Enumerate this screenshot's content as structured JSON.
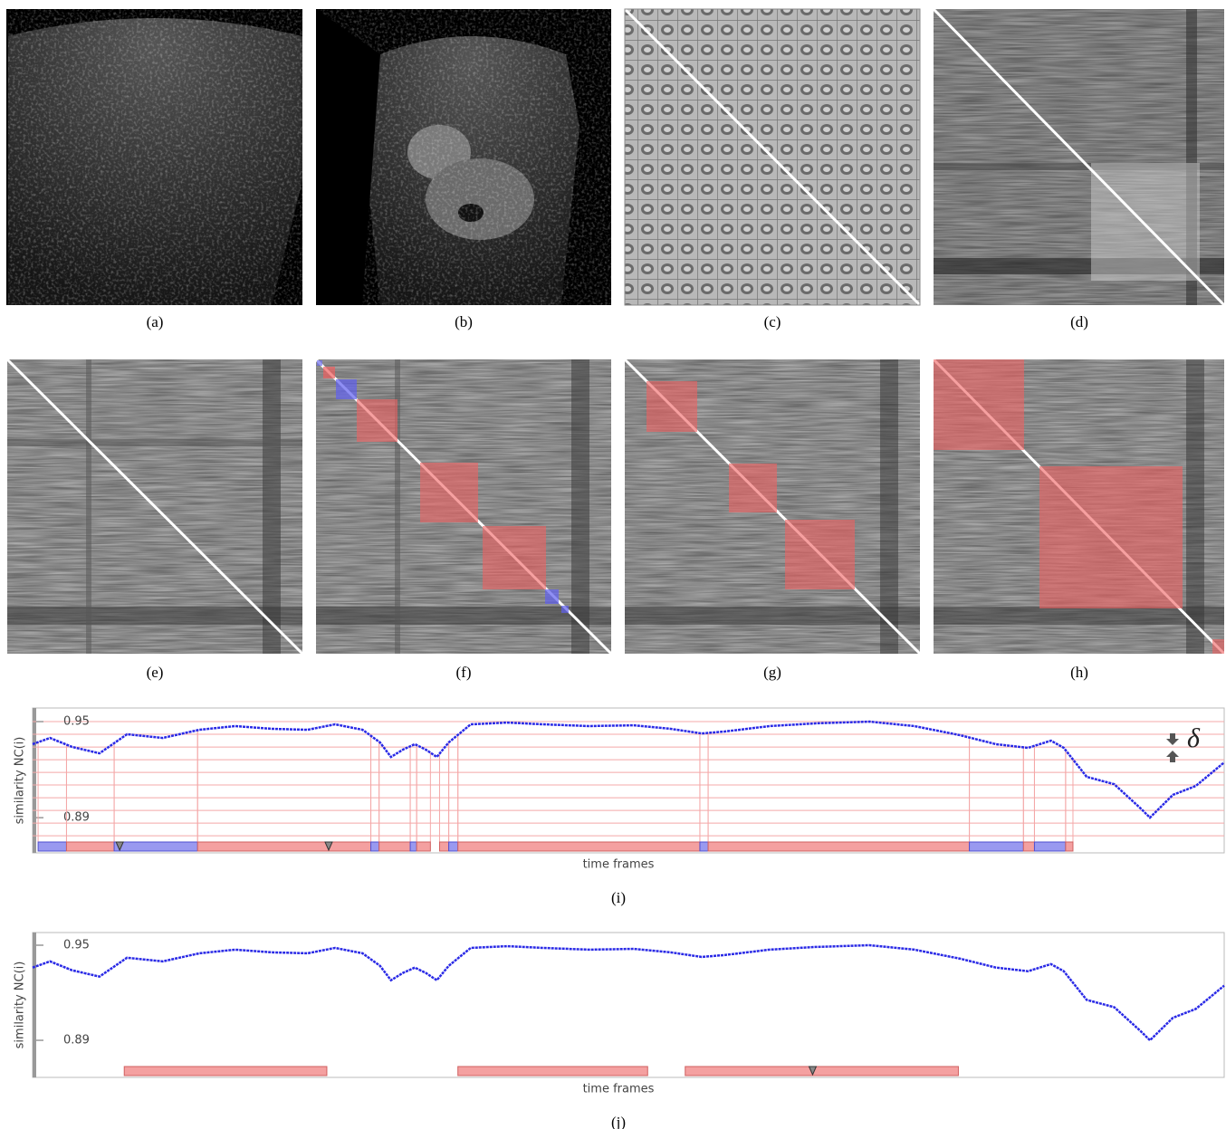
{
  "panels": [
    {
      "caption": "(a)"
    },
    {
      "caption": "(b)"
    },
    {
      "caption": "(c)"
    },
    {
      "caption": "(d)"
    },
    {
      "caption": "(e)"
    },
    {
      "caption": "(f)"
    },
    {
      "caption": "(g)"
    },
    {
      "caption": "(h)"
    }
  ],
  "chart_data": [
    {
      "type": "line",
      "caption": "(i)",
      "ylabel": "similarity NC(i)",
      "xlabel": "time frames",
      "annotation": "δ",
      "color": "#2a2ae6",
      "xlim": [
        0,
        130
      ],
      "ylim": [
        0.868,
        0.9585
      ],
      "yticks": [
        0.95,
        0.89
      ],
      "x": [
        0,
        1.9,
        4.3,
        7.3,
        10.3,
        14.2,
        18.2,
        22.1,
        26.1,
        30.0,
        33.0,
        36.0,
        37.9,
        39.1,
        40.4,
        41.7,
        42.9,
        44.1,
        45.4,
        47.8,
        51.8,
        55.7,
        60.7,
        65.6,
        69.6,
        73.0,
        75.5,
        80.4,
        85.4,
        91.3,
        96.2,
        101.2,
        105.1,
        108.6,
        111.1,
        112.5,
        115.0,
        118.0,
        120.9,
        121.9,
        124.4,
        126.9,
        130
      ],
      "values": [
        0.9359,
        0.9398,
        0.9342,
        0.9302,
        0.9421,
        0.9398,
        0.9449,
        0.9472,
        0.9455,
        0.9449,
        0.9483,
        0.9449,
        0.937,
        0.9279,
        0.9325,
        0.9359,
        0.9325,
        0.9279,
        0.937,
        0.9483,
        0.9494,
        0.9483,
        0.9472,
        0.9477,
        0.9455,
        0.9426,
        0.9438,
        0.9472,
        0.9489,
        0.95,
        0.9472,
        0.9415,
        0.9359,
        0.9336,
        0.9381,
        0.9336,
        0.9155,
        0.9109,
        0.8957,
        0.89,
        0.9042,
        0.9098,
        0.9245
      ],
      "thresholds": [
        0.95,
        0.9421,
        0.9341,
        0.9262,
        0.9183,
        0.9104,
        0.9024,
        0.8945,
        0.8866,
        0.8787
      ],
      "threshold_color": "#f4a8a8",
      "segments": [
        {
          "start": 0.6,
          "end": 3.7,
          "color": "#9999f0"
        },
        {
          "start": 3.7,
          "end": 8.9,
          "color": "#f4a0a0"
        },
        {
          "start": 8.9,
          "end": 18.0,
          "color": "#9999f0"
        },
        {
          "start": 18.0,
          "end": 36.9,
          "color": "#f4a0a0"
        },
        {
          "start": 36.9,
          "end": 37.8,
          "color": "#9999f0"
        },
        {
          "start": 37.8,
          "end": 41.2,
          "color": "#f4a0a0"
        },
        {
          "start": 41.2,
          "end": 41.9,
          "color": "#9999f0"
        },
        {
          "start": 41.9,
          "end": 43.4,
          "color": "#f4a0a0"
        },
        {
          "start": 44.4,
          "end": 45.4,
          "color": "#f4a0a0"
        },
        {
          "start": 45.4,
          "end": 46.4,
          "color": "#9999f0"
        },
        {
          "start": 46.4,
          "end": 72.8,
          "color": "#f4a0a0"
        },
        {
          "start": 72.8,
          "end": 73.7,
          "color": "#9999f0"
        },
        {
          "start": 73.7,
          "end": 102.2,
          "color": "#f4a0a0"
        },
        {
          "start": 102.2,
          "end": 108.1,
          "color": "#9999f0"
        },
        {
          "start": 108.1,
          "end": 109.3,
          "color": "#f4a0a0"
        },
        {
          "start": 109.3,
          "end": 112.7,
          "color": "#9999f0"
        },
        {
          "start": 112.7,
          "end": 113.5,
          "color": "#f4a0a0"
        }
      ],
      "markers": [
        9.5,
        32.3
      ]
    },
    {
      "type": "line",
      "caption": "(j)",
      "ylabel": "similarity NC(i)",
      "xlabel": "time frames",
      "color": "#2a2ae6",
      "xlim": [
        0,
        130
      ],
      "ylim": [
        0.8666,
        0.958
      ],
      "yticks": [
        0.95,
        0.89
      ],
      "x": [
        0,
        1.9,
        4.3,
        7.3,
        10.3,
        14.2,
        18.2,
        22.1,
        26.1,
        30.0,
        33.0,
        36.0,
        37.9,
        39.1,
        40.4,
        41.7,
        42.9,
        44.1,
        45.4,
        47.8,
        51.8,
        55.7,
        60.7,
        65.6,
        69.6,
        73.0,
        75.5,
        80.4,
        85.4,
        91.3,
        96.2,
        101.2,
        105.1,
        108.6,
        111.1,
        112.5,
        115.0,
        118.0,
        120.9,
        121.9,
        124.4,
        126.9,
        130
      ],
      "values": [
        0.9359,
        0.9398,
        0.9342,
        0.9302,
        0.9421,
        0.9398,
        0.9449,
        0.9472,
        0.9455,
        0.9449,
        0.9483,
        0.9449,
        0.937,
        0.9279,
        0.9325,
        0.9359,
        0.9325,
        0.9279,
        0.937,
        0.9483,
        0.9494,
        0.9483,
        0.9472,
        0.9477,
        0.9455,
        0.9426,
        0.9438,
        0.9472,
        0.9489,
        0.95,
        0.9472,
        0.9415,
        0.9359,
        0.9336,
        0.9381,
        0.9336,
        0.9155,
        0.9109,
        0.8957,
        0.89,
        0.9042,
        0.9098,
        0.9245
      ],
      "segments": [
        {
          "start": 10.0,
          "end": 32.1,
          "color": "#f4a0a0"
        },
        {
          "start": 46.4,
          "end": 67.1,
          "color": "#f4a0a0"
        },
        {
          "start": 71.2,
          "end": 101.0,
          "color": "#f4a0a0"
        }
      ],
      "markers": [
        85.1
      ]
    }
  ]
}
